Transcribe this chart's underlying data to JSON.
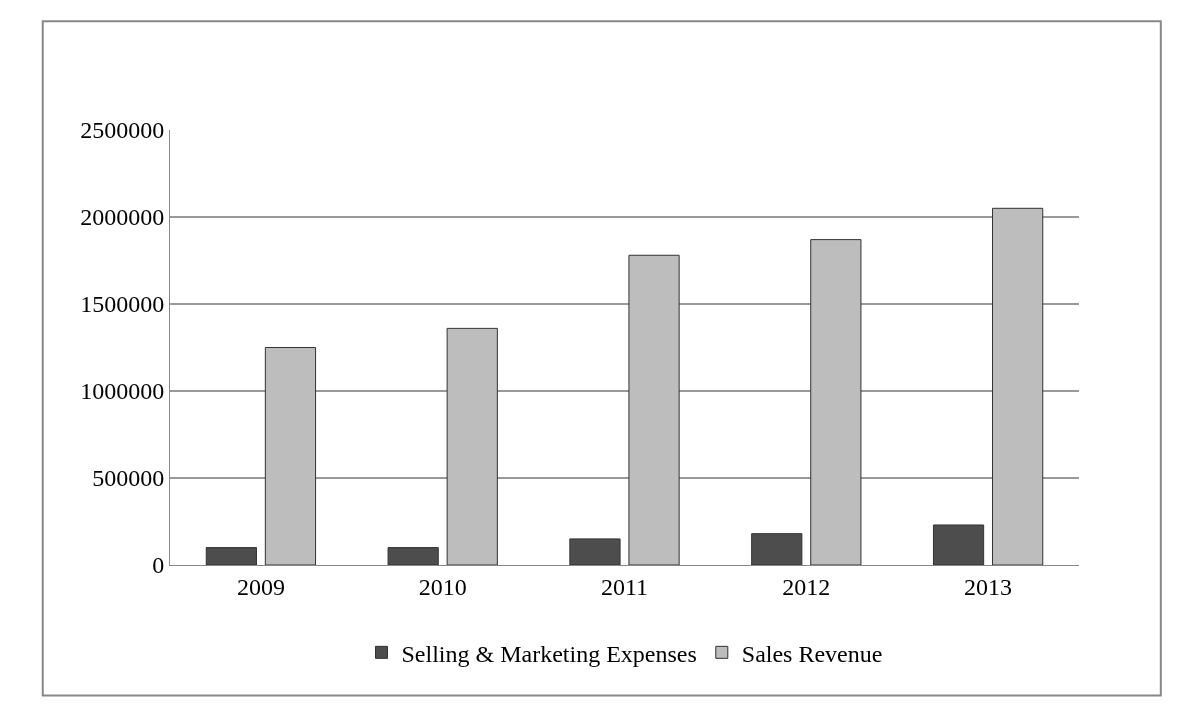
{
  "chart_data": {
    "type": "bar",
    "categories": [
      "2009",
      "2010",
      "2011",
      "2012",
      "2013"
    ],
    "series": [
      {
        "name": "Selling & Marketing Expenses",
        "color": "#4d4d4d",
        "values": [
          100000,
          100000,
          150000,
          180000,
          230000
        ]
      },
      {
        "name": "Sales Revenue",
        "color": "#bdbdbd",
        "values": [
          1250000,
          1360000,
          1780000,
          1870000,
          2050000
        ]
      }
    ],
    "ylim": [
      0,
      2500000
    ],
    "yticks": [
      0,
      500000,
      1000000,
      1500000,
      2000000,
      2500000
    ],
    "grid": "y",
    "legend": "bottom"
  }
}
